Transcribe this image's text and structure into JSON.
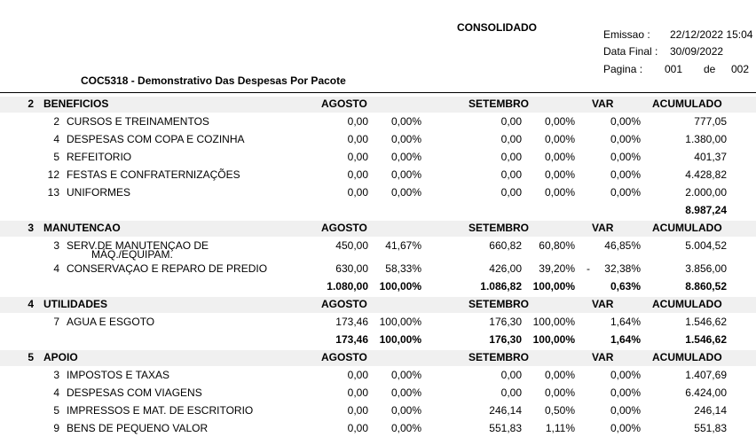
{
  "report": {
    "title": "CONSOLIDADO",
    "subtitle": "COC5318 - Demonstrativo Das Despesas Por Pacote",
    "emissao_label": "Emissao :",
    "emissao_value": "22/12/2022 15:04",
    "data_final_label": "Data Final :",
    "data_final_value": "30/09/2022",
    "pagina_label": "Pagina :",
    "pagina_value": "001",
    "pagina_de": "de",
    "pagina_total": "002"
  },
  "columns": {
    "agosto": "AGOSTO",
    "setembro": "SETEMBRO",
    "var": "VAR",
    "acumulado": "ACUMULADO"
  },
  "sections": [
    {
      "num": "2",
      "name": "BENEFICIOS",
      "rows": [
        {
          "code": "2",
          "desc": "CURSOS E TREINAMENTOS",
          "desc2": "",
          "ago": "0,00",
          "ago_pct": "0,00%",
          "set": "0,00",
          "set_pct": "0,00%",
          "sign": "",
          "var": "0,00%",
          "acum": "777,05"
        },
        {
          "code": "4",
          "desc": "DESPESAS COM COPA E COZINHA",
          "desc2": "",
          "ago": "0,00",
          "ago_pct": "0,00%",
          "set": "0,00",
          "set_pct": "0,00%",
          "sign": "",
          "var": "0,00%",
          "acum": "1.380,00"
        },
        {
          "code": "5",
          "desc": "REFEITORIO",
          "desc2": "",
          "ago": "0,00",
          "ago_pct": "0,00%",
          "set": "0,00",
          "set_pct": "0,00%",
          "sign": "",
          "var": "0,00%",
          "acum": "401,37"
        },
        {
          "code": "12",
          "desc": "FESTAS E CONFRATERNIZAÇÕES",
          "desc2": "",
          "ago": "0,00",
          "ago_pct": "0,00%",
          "set": "0,00",
          "set_pct": "0,00%",
          "sign": "",
          "var": "0,00%",
          "acum": "4.428,82"
        },
        {
          "code": "13",
          "desc": "UNIFORMES",
          "desc2": "",
          "ago": "0,00",
          "ago_pct": "0,00%",
          "set": "0,00",
          "set_pct": "0,00%",
          "sign": "",
          "var": "0,00%",
          "acum": "2.000,00"
        }
      ],
      "total": {
        "ago": "",
        "ago_pct": "",
        "set": "",
        "set_pct": "",
        "var": "",
        "acum": "8.987,24"
      }
    },
    {
      "num": "3",
      "name": "MANUTENCAO",
      "rows": [
        {
          "code": "3",
          "desc": "SERV.DE MANUTENÇAO DE",
          "desc2": "MÁQ./EQUIPAM.",
          "ago": "450,00",
          "ago_pct": "41,67%",
          "set": "660,82",
          "set_pct": "60,80%",
          "sign": "",
          "var": "46,85%",
          "acum": "5.004,52"
        },
        {
          "code": "4",
          "desc": "CONSERVAÇAO E REPARO DE PREDIO",
          "desc2": "",
          "ago": "630,00",
          "ago_pct": "58,33%",
          "set": "426,00",
          "set_pct": "39,20%",
          "sign": "-",
          "var": "32,38%",
          "acum": "3.856,00"
        }
      ],
      "total": {
        "ago": "1.080,00",
        "ago_pct": "100,00%",
        "set": "1.086,82",
        "set_pct": "100,00%",
        "var": "0,63%",
        "acum": "8.860,52"
      }
    },
    {
      "num": "4",
      "name": "UTILIDADES",
      "rows": [
        {
          "code": "7",
          "desc": "AGUA E ESGOTO",
          "desc2": "",
          "ago": "173,46",
          "ago_pct": "100,00%",
          "set": "176,30",
          "set_pct": "100,00%",
          "sign": "",
          "var": "1,64%",
          "acum": "1.546,62"
        }
      ],
      "total": {
        "ago": "173,46",
        "ago_pct": "100,00%",
        "set": "176,30",
        "set_pct": "100,00%",
        "var": "1,64%",
        "acum": "1.546,62"
      }
    },
    {
      "num": "5",
      "name": "APOIO",
      "rows": [
        {
          "code": "3",
          "desc": "IMPOSTOS E TAXAS",
          "desc2": "",
          "ago": "0,00",
          "ago_pct": "0,00%",
          "set": "0,00",
          "set_pct": "0,00%",
          "sign": "",
          "var": "0,00%",
          "acum": "1.407,69"
        },
        {
          "code": "4",
          "desc": "DESPESAS COM VIAGENS",
          "desc2": "",
          "ago": "0,00",
          "ago_pct": "0,00%",
          "set": "0,00",
          "set_pct": "0,00%",
          "sign": "",
          "var": "0,00%",
          "acum": "6.424,00"
        },
        {
          "code": "5",
          "desc": "IMPRESSOS E MAT. DE ESCRITORIO",
          "desc2": "",
          "ago": "0,00",
          "ago_pct": "0,00%",
          "set": "246,14",
          "set_pct": "0,50%",
          "sign": "",
          "var": "0,00%",
          "acum": "246,14"
        },
        {
          "code": "9",
          "desc": "BENS DE PEQUENO VALOR",
          "desc2": "",
          "ago": "0,00",
          "ago_pct": "0,00%",
          "set": "551,83",
          "set_pct": "1,11%",
          "sign": "",
          "var": "0,00%",
          "acum": "551,83"
        }
      ],
      "total": null
    }
  ]
}
